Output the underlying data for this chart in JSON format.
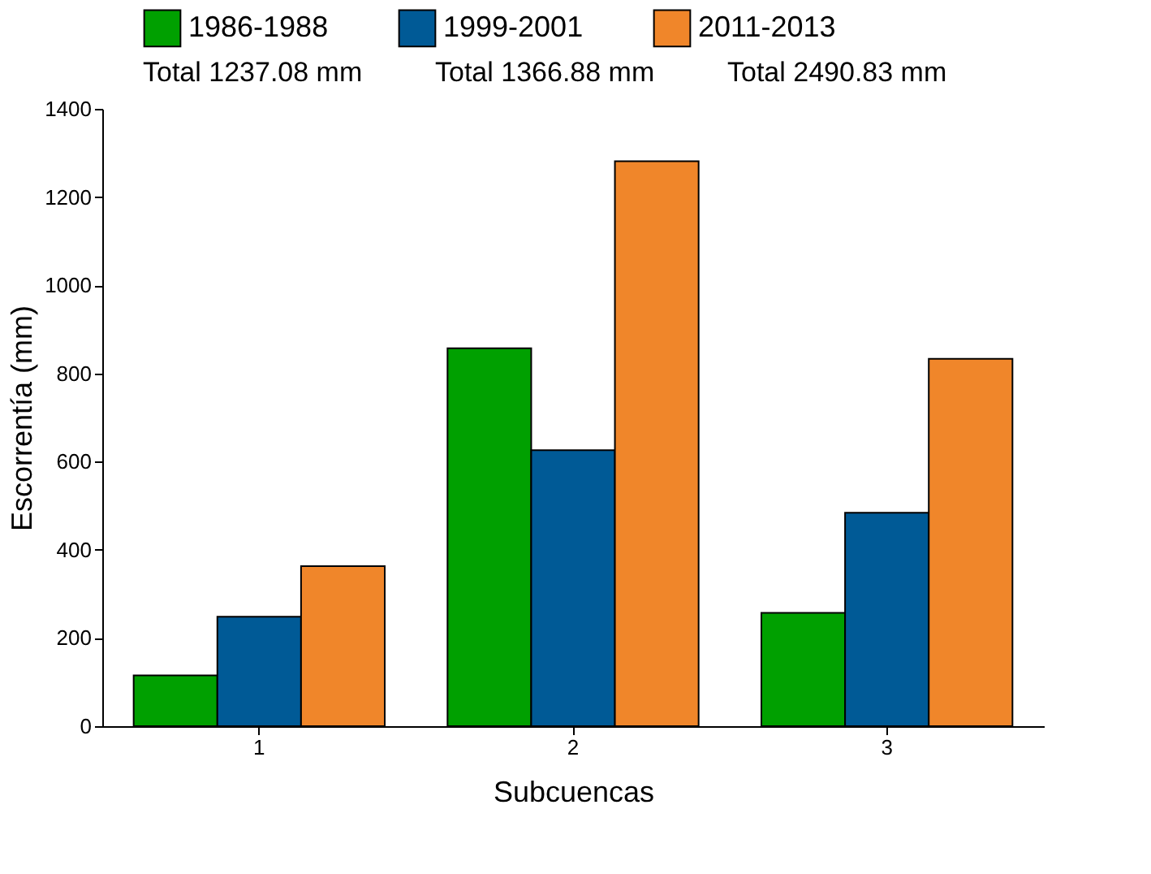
{
  "chart_data": {
    "type": "bar",
    "xlabel": "Subcuencas",
    "ylabel": "Escorrentía (mm)",
    "categories": [
      "1",
      "2",
      "3"
    ],
    "series": [
      {
        "name": "1986-1988",
        "color": "#00a000",
        "values": [
          115,
          857,
          257
        ]
      },
      {
        "name": "1999-2001",
        "color": "#005a96",
        "values": [
          248,
          626,
          484
        ]
      },
      {
        "name": "2011-2013",
        "color": "#f0862a",
        "values": [
          363,
          1281,
          833
        ]
      }
    ],
    "annotations": [
      "Total 1237.08 mm",
      "Total 1366.88 mm",
      "Total 2490.83 mm"
    ],
    "ylim": [
      0,
      1400
    ],
    "yticks": [
      0,
      200,
      400,
      600,
      800,
      1000,
      1200,
      1400
    ],
    "grid": false,
    "legend": "top"
  }
}
